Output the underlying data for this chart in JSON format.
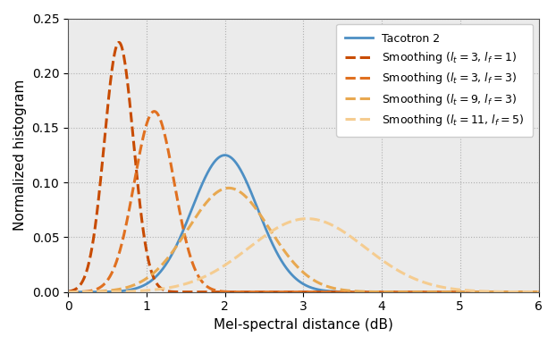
{
  "xlabel": "Mel-spectral distance (dB)",
  "ylabel": "Normalized histogram",
  "xlim": [
    0,
    6
  ],
  "ylim": [
    0,
    0.25
  ],
  "yticks": [
    0.0,
    0.05,
    0.1,
    0.15,
    0.2,
    0.25
  ],
  "xticks": [
    0,
    1,
    2,
    3,
    4,
    5,
    6
  ],
  "curves": [
    {
      "label": "Tacotron 2",
      "color": "#4d8fc4",
      "linestyle": "solid",
      "linewidth": 2.0,
      "mu": 2.0,
      "sigma": 0.42,
      "peak": 0.125
    },
    {
      "label": "Smoothing ($l_t = 3$, $l_f = 1$)",
      "color": "#c84b00",
      "linestyle": "dashed",
      "linewidth": 2.2,
      "mu": 0.65,
      "sigma": 0.185,
      "peak": 0.228
    },
    {
      "label": "Smoothing ($l_t = 3$, $l_f = 3$)",
      "color": "#e07020",
      "linestyle": "dashed",
      "linewidth": 2.2,
      "mu": 1.1,
      "sigma": 0.255,
      "peak": 0.165
    },
    {
      "label": "Smoothing ($l_t = 9$, $l_f = 3$)",
      "color": "#e8a850",
      "linestyle": "dashed",
      "linewidth": 2.2,
      "mu": 2.05,
      "sigma": 0.52,
      "peak": 0.095
    },
    {
      "label": "Smoothing ($l_t = 11$, $l_f = 5$)",
      "color": "#f5cc90",
      "linestyle": "dashed",
      "linewidth": 2.2,
      "mu": 3.05,
      "sigma": 0.74,
      "peak": 0.067
    }
  ],
  "grid_color": "#b0b0b0",
  "grid_linestyle": "dotted",
  "background_color": "#ebebeb",
  "legend_loc": "upper right"
}
